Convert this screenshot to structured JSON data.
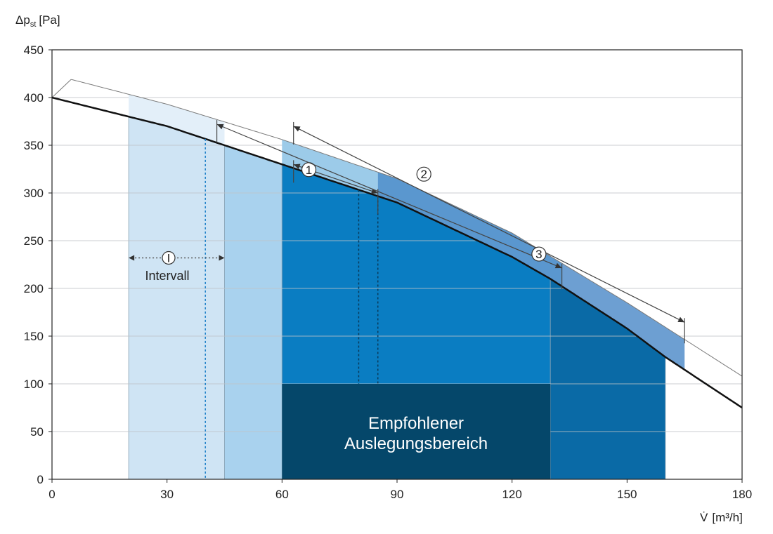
{
  "chart_data": {
    "type": "area",
    "y_axis_label": "Δp",
    "y_axis_label_sub": "st",
    "y_axis_unit": "[Pa]",
    "x_axis_label": "V̇",
    "x_axis_unit": "[m³/h]",
    "x_ticks": [
      0,
      30,
      60,
      90,
      120,
      150,
      180
    ],
    "y_ticks": [
      0,
      50,
      100,
      150,
      200,
      250,
      300,
      350,
      400,
      450
    ],
    "xlim": [
      0,
      180
    ],
    "ylim": [
      0,
      450
    ],
    "grid": "horizontal",
    "characteristic_curve": [
      [
        0,
        400
      ],
      [
        30,
        370
      ],
      [
        60,
        330
      ],
      [
        90,
        290
      ],
      [
        120,
        233
      ],
      [
        130,
        210
      ],
      [
        150,
        158
      ],
      [
        160,
        128
      ],
      [
        180,
        75
      ]
    ],
    "upper_curve": [
      [
        5,
        419
      ],
      [
        30,
        393
      ],
      [
        60,
        356
      ],
      [
        90,
        315
      ],
      [
        120,
        258
      ],
      [
        150,
        185
      ],
      [
        180,
        108
      ]
    ],
    "regions": [
      {
        "name": "very-light",
        "x": [
          20,
          45
        ],
        "color": "#cfe4f4"
      },
      {
        "name": "light",
        "x": [
          45,
          60
        ],
        "color": "#a9d2ee"
      },
      {
        "name": "medium",
        "x": [
          60,
          130
        ],
        "color": "#0a7dc2"
      },
      {
        "name": "dark-right",
        "x": [
          130,
          160
        ],
        "color": "#0a6aa6"
      }
    ],
    "recommended_area": {
      "x": [
        60,
        130
      ],
      "y": [
        0,
        100
      ],
      "color": "#05476a",
      "label_line1": "Empfohlener",
      "label_line2": "Auslegungsbereich"
    },
    "interval_annotation": {
      "number": "I",
      "label": "Intervall",
      "x": [
        20,
        45
      ],
      "y": 232
    },
    "range_annotations": [
      {
        "number": "1",
        "x": [
          63,
          85
        ]
      },
      {
        "number": "2",
        "x": [
          63,
          165
        ]
      },
      {
        "number": "3",
        "x": [
          43,
          133
        ]
      }
    ],
    "dotted_markers": [
      40,
      80,
      85
    ]
  }
}
